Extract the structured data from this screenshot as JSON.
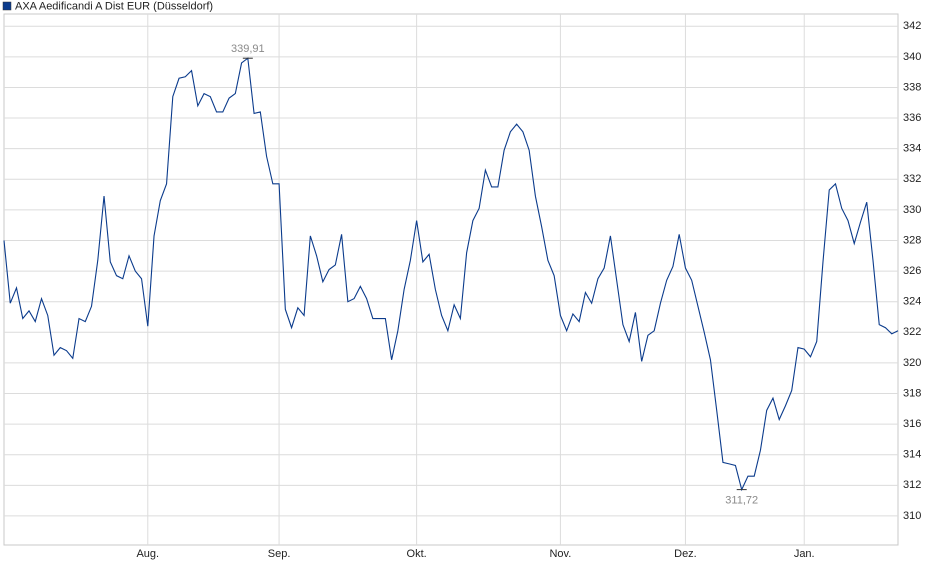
{
  "chart_data": {
    "type": "line",
    "series": [
      {
        "name": "AXA Aedificandi A Dist EUR (Düsseldorf)",
        "color": "#0b3b8c",
        "values": [
          328.0,
          323.9,
          324.9,
          322.9,
          323.4,
          322.7,
          324.2,
          323.1,
          320.5,
          321.0,
          320.8,
          320.3,
          322.9,
          322.7,
          323.7,
          326.7,
          330.9,
          326.6,
          325.7,
          325.5,
          327.0,
          326.0,
          325.5,
          322.4,
          328.3,
          330.6,
          331.7,
          337.4,
          338.6,
          338.7,
          339.1,
          336.8,
          337.6,
          337.4,
          336.4,
          336.4,
          337.3,
          337.6,
          339.6,
          339.91,
          336.3,
          336.4,
          333.5,
          331.7,
          331.7,
          323.5,
          322.3,
          323.6,
          323.1,
          328.3,
          327.0,
          325.3,
          326.1,
          326.4,
          328.4,
          324.0,
          324.2,
          325.0,
          324.2,
          322.9,
          322.9,
          322.9,
          320.2,
          322.1,
          324.8,
          326.7,
          329.3,
          326.6,
          327.1,
          324.8,
          323.1,
          322.1,
          323.8,
          322.9,
          327.2,
          329.3,
          330.1,
          332.6,
          331.5,
          331.5,
          333.9,
          335.1,
          335.6,
          335.1,
          333.9,
          330.9,
          328.9,
          326.7,
          325.7,
          323.1,
          322.1,
          323.2,
          322.7,
          324.6,
          323.9,
          325.5,
          326.2,
          328.3,
          325.4,
          322.5,
          321.4,
          323.3,
          320.1,
          321.8,
          322.1,
          323.9,
          325.4,
          326.3,
          328.4,
          326.2,
          325.4,
          323.7,
          322.0,
          320.2,
          316.9,
          313.5,
          313.4,
          313.3,
          311.72,
          312.6,
          312.6,
          314.3,
          316.9,
          317.7,
          316.3,
          317.2,
          318.2,
          321.0,
          320.9,
          320.4,
          321.4,
          326.6,
          331.3,
          331.7,
          330.1,
          329.3,
          327.8,
          329.2,
          330.5,
          326.7,
          322.5,
          322.3,
          321.9,
          322.1
        ]
      }
    ],
    "categories": [
      null,
      null,
      null,
      null,
      null,
      null,
      null,
      null,
      null,
      null,
      null,
      null,
      null,
      null,
      null,
      null,
      null,
      null,
      null,
      null,
      null,
      null,
      null,
      "Aug.",
      null,
      null,
      null,
      null,
      null,
      null,
      null,
      null,
      null,
      null,
      null,
      null,
      null,
      null,
      null,
      null,
      null,
      null,
      null,
      null,
      "Sep.",
      null,
      null,
      null,
      null,
      null,
      null,
      null,
      null,
      null,
      null,
      null,
      null,
      null,
      null,
      null,
      null,
      null,
      null,
      null,
      null,
      null,
      "Okt.",
      null,
      null,
      null,
      null,
      null,
      null,
      null,
      null,
      null,
      null,
      null,
      null,
      null,
      null,
      null,
      null,
      null,
      null,
      null,
      null,
      null,
      null,
      "Nov.",
      null,
      null,
      null,
      null,
      null,
      null,
      null,
      null,
      null,
      null,
      null,
      null,
      null,
      null,
      null,
      null,
      null,
      null,
      null,
      "Dez.",
      null,
      null,
      null,
      null,
      null,
      null,
      null,
      null,
      null,
      null,
      null,
      null,
      null,
      null,
      null,
      null,
      null,
      null,
      "Jan.",
      null,
      null,
      null,
      null,
      null,
      null,
      null,
      null,
      null,
      null,
      null,
      null,
      null,
      null,
      null
    ],
    "ylim": [
      308.1,
      342.8
    ],
    "yticks": [
      310,
      312,
      314,
      316,
      318,
      320,
      322,
      324,
      326,
      328,
      330,
      332,
      334,
      336,
      338,
      340,
      342
    ],
    "grid": true,
    "annotations": [
      {
        "label": "339,91",
        "value": 339.91
      },
      {
        "label": "311,72",
        "value": 311.72
      }
    ]
  }
}
